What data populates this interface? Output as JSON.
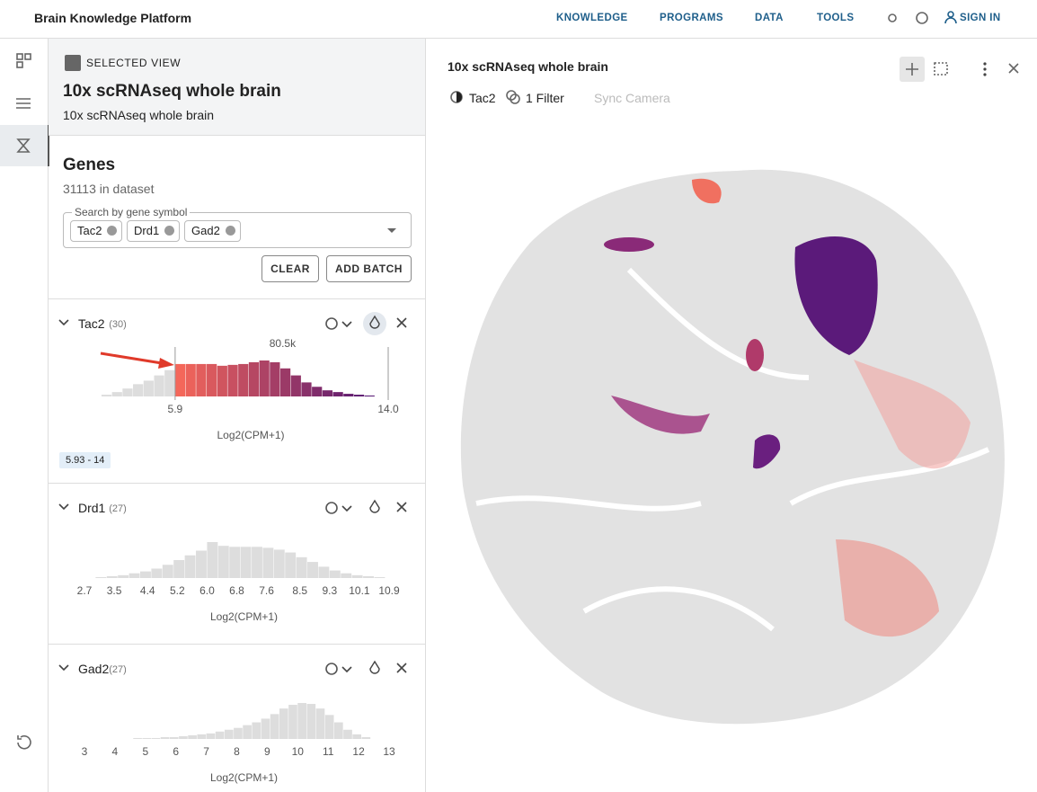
{
  "header": {
    "title": "Brain Knowledge Platform",
    "nav": [
      "KNOWLEDGE",
      "PROGRAMS",
      "DATA",
      "TOOLS"
    ],
    "sign_in": "SIGN IN"
  },
  "selected_view": {
    "label": "SELECTED VIEW",
    "title": "10x scRNAseq whole brain",
    "subtitle": "10x scRNAseq whole brain"
  },
  "genes": {
    "title": "Genes",
    "count": "31113 in dataset",
    "search_label": "Search by gene symbol",
    "chips": [
      "Tac2",
      "Drd1",
      "Gad2"
    ],
    "buttons": [
      "CLEAR",
      "ADD BATCH"
    ],
    "panels": [
      {
        "name": "Tac2",
        "count": "(30)",
        "histogram": {
          "type": "histogram",
          "x_label": "Log2(CPM+1)",
          "color": "#dddddd",
          "highlight_colors": [
            "#f4675a",
            "#4b1173"
          ],
          "peak_label": "80.5k",
          "range_label": "5.93 - 14",
          "xlim": [
            3,
            14
          ],
          "xticks": [
            5.9,
            {
              "value": 14,
              "label": "14.0"
            }
          ],
          "bins": [
            3.1,
            3.5,
            3.9,
            4.3,
            4.7,
            5.1,
            5.5,
            5.9,
            6.3,
            6.7,
            7.1,
            7.5,
            7.9,
            8.3,
            8.7,
            9.1,
            9.5,
            9.9,
            10.3,
            10.7,
            11.1,
            11.5,
            11.9,
            12.3,
            12.7,
            13.1,
            13.5
          ],
          "values": [
            3900,
            9800,
            17700,
            27500,
            35300,
            47100,
            58900,
            72600,
            72600,
            72600,
            72600,
            68700,
            70700,
            72600,
            76600,
            80500,
            76600,
            62800,
            47100,
            31400,
            21600,
            13700,
            9800,
            5900,
            3900,
            2000
          ]
        }
      },
      {
        "name": "Drd1",
        "count": "(27)",
        "histogram": {
          "type": "histogram",
          "x_label": "Log2(CPM+1)",
          "color": "#dddddd",
          "xlim": [
            2.7,
            10.9
          ],
          "xticks": [
            2.7,
            3.5,
            4.4,
            5.2,
            {
              "value": 6,
              "label": "6.0"
            },
            6.8,
            7.6,
            8.5,
            9.3,
            10.1,
            10.9
          ],
          "bins": [
            3.0,
            3.3,
            3.6,
            3.9,
            4.2,
            4.5,
            4.8,
            5.1,
            5.4,
            5.7,
            6.0,
            6.3,
            6.6,
            6.9,
            7.2,
            7.5,
            7.8,
            8.1,
            8.4,
            8.7,
            9.0,
            9.3,
            9.6,
            9.9,
            10.2,
            10.5,
            10.8
          ],
          "values": [
            1000,
            2000,
            3000,
            5000,
            7000,
            10000,
            14000,
            19000,
            24000,
            29000,
            38000,
            34000,
            33000,
            33000,
            33000,
            32000,
            30000,
            27000,
            22000,
            17000,
            12000,
            8000,
            5000,
            3000,
            2000,
            1000
          ]
        }
      },
      {
        "name": "Gad2",
        "count": "(27)",
        "histogram": {
          "type": "histogram",
          "x_label": "Log2(CPM+1)",
          "color": "#dddddd",
          "xlim": [
            3,
            13
          ],
          "xticks": [
            3,
            4,
            5,
            6,
            7,
            8,
            9,
            10,
            11,
            12,
            13
          ],
          "bins": [
            4.6,
            4.9,
            5.2,
            5.5,
            5.8,
            6.1,
            6.4,
            6.7,
            7.0,
            7.3,
            7.6,
            7.9,
            8.2,
            8.5,
            8.8,
            9.1,
            9.4,
            9.7,
            10.0,
            10.3,
            10.6,
            10.9,
            11.2,
            11.5,
            11.8,
            12.1,
            12.4
          ],
          "values": [
            1000,
            1000,
            1000,
            2000,
            2000,
            3000,
            4000,
            5000,
            6000,
            8000,
            10000,
            12000,
            15000,
            18000,
            22000,
            27000,
            33000,
            37000,
            39000,
            38000,
            33000,
            26000,
            18000,
            10000,
            5000,
            2000
          ]
        }
      }
    ]
  },
  "viewer": {
    "title": "10x scRNAseq whole brain",
    "color_by": "Tac2",
    "filter": "1 Filter",
    "sync": "Sync Camera"
  }
}
